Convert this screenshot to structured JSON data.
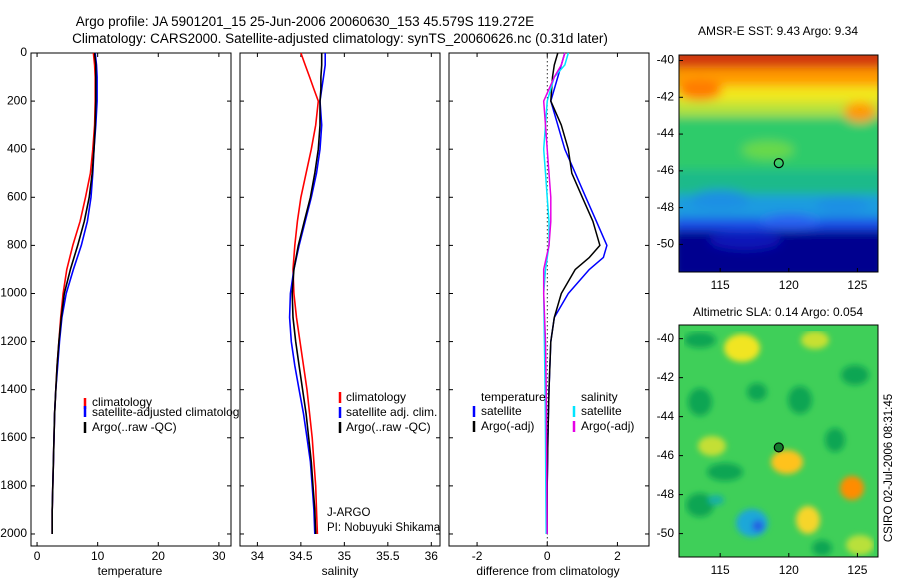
{
  "header": {
    "title_line1": "Argo profile: JA 5901201_15 25-Jun-2006 20060630_153 45.579S 119.272E",
    "title_line2": "Climatology: CARS2000. Satellite-adjusted climatology: synTS_20060626.nc (0.31d later)"
  },
  "colors": {
    "climatology": "#ff0000",
    "satellite": "#0000ff",
    "argo": "#000000",
    "satellite_salinity": "#00e5ff",
    "argo_salinity": "#e600e6"
  },
  "chart_data": [
    {
      "type": "line",
      "id": "temperature",
      "xlabel": "temperature",
      "ylabel": "",
      "xlim": [
        -1,
        32
      ],
      "ylim": [
        0,
        2050
      ],
      "y_reversed": true,
      "xticks": [
        0,
        10,
        20,
        30
      ],
      "xtick_labels": [
        "0",
        "10",
        "20",
        "30"
      ],
      "yticks": [
        0,
        200,
        400,
        600,
        800,
        1000,
        1200,
        1400,
        1600,
        1800,
        2000
      ],
      "ytick_labels": [
        "0",
        "200",
        "400",
        "600",
        "800",
        "1000",
        "1200",
        "1400",
        "1600",
        "1800",
        "2000"
      ],
      "legend": [
        "climatology",
        "satellite-adjusted climatology",
        "Argo(..raw -QC)"
      ],
      "series": [
        {
          "name": "climatology",
          "color_key": "climatology",
          "depth": [
            0,
            50,
            100,
            200,
            300,
            400,
            500,
            600,
            700,
            800,
            900,
            1000,
            1100,
            1200,
            1300,
            1400,
            1500,
            1600,
            1700,
            1800,
            1900,
            2000
          ],
          "values": [
            9.3,
            9.5,
            9.6,
            9.6,
            9.5,
            9.2,
            8.8,
            8.0,
            7.1,
            5.9,
            4.9,
            4.3,
            3.9,
            3.6,
            3.3,
            3.1,
            2.9,
            2.8,
            2.7,
            2.6,
            2.5,
            2.5
          ]
        },
        {
          "name": "satellite-adjusted climatology",
          "color_key": "satellite",
          "depth": [
            0,
            50,
            100,
            200,
            300,
            400,
            500,
            600,
            700,
            800,
            900,
            1000,
            1100,
            1200,
            1300,
            1400,
            1500,
            1600,
            1700,
            1800,
            1900,
            2000
          ],
          "values": [
            9.6,
            9.8,
            9.9,
            9.9,
            9.7,
            9.4,
            9.2,
            8.9,
            8.3,
            7.3,
            6.0,
            4.8,
            4.1,
            3.7,
            3.4,
            3.1,
            2.9,
            2.8,
            2.7,
            2.6,
            2.5,
            2.5
          ]
        },
        {
          "name": "Argo(..raw -QC)",
          "color_key": "argo",
          "depth": [
            0,
            50,
            100,
            200,
            300,
            400,
            500,
            600,
            700,
            800,
            900,
            1000,
            1100,
            1200,
            1300,
            1400,
            1500,
            1600,
            1700,
            1800,
            1900,
            2000
          ],
          "values": [
            9.5,
            9.7,
            9.7,
            9.7,
            9.6,
            9.4,
            9.1,
            8.6,
            7.8,
            6.7,
            5.5,
            4.5,
            4.0,
            3.6,
            3.3,
            3.1,
            2.9,
            2.8,
            2.7,
            2.6,
            2.5,
            2.5
          ]
        }
      ]
    },
    {
      "type": "line",
      "id": "salinity",
      "xlabel": "salinity",
      "ylabel": "",
      "xlim": [
        33.8,
        36.1
      ],
      "ylim": [
        0,
        2050
      ],
      "y_reversed": true,
      "xticks": [
        34,
        34.5,
        35,
        35.5,
        36
      ],
      "xtick_labels": [
        "34",
        "34.5",
        "35",
        "35.5",
        "36"
      ],
      "legend": [
        "climatology",
        "satellite adj. clim.",
        "Argo(..raw -QC)"
      ],
      "annotation_line1": "J-ARGO",
      "annotation_line2": "PI: Nobuyuki Shikama",
      "series": [
        {
          "name": "climatology",
          "color_key": "climatology",
          "depth": [
            0,
            50,
            100,
            150,
            200,
            300,
            400,
            500,
            600,
            700,
            800,
            900,
            1000,
            1100,
            1200,
            1300,
            1400,
            1500,
            1600,
            1700,
            1800,
            1900,
            2000
          ],
          "values": [
            34.5,
            34.55,
            34.6,
            34.65,
            34.7,
            34.67,
            34.62,
            34.56,
            34.5,
            34.46,
            34.43,
            34.41,
            34.42,
            34.45,
            34.49,
            34.53,
            34.57,
            34.6,
            34.63,
            34.65,
            34.67,
            34.68,
            34.69
          ]
        },
        {
          "name": "satellite adj. clim.",
          "color_key": "satellite",
          "depth": [
            0,
            50,
            100,
            150,
            200,
            300,
            400,
            500,
            600,
            700,
            800,
            900,
            1000,
            1100,
            1200,
            1300,
            1400,
            1500,
            1600,
            1700,
            1800,
            1900,
            2000
          ],
          "values": [
            34.78,
            34.78,
            34.76,
            34.74,
            34.72,
            34.74,
            34.72,
            34.68,
            34.62,
            34.55,
            34.48,
            34.42,
            34.38,
            34.37,
            34.39,
            34.43,
            34.48,
            34.53,
            34.57,
            34.61,
            34.63,
            34.65,
            34.66
          ]
        },
        {
          "name": "Argo(..raw -QC)",
          "color_key": "argo",
          "depth": [
            0,
            50,
            100,
            150,
            200,
            300,
            400,
            500,
            600,
            700,
            800,
            900,
            1000,
            1100,
            1200,
            1300,
            1400,
            1500,
            1600,
            1700,
            1800,
            1900,
            2000
          ],
          "values": [
            34.74,
            34.74,
            34.73,
            34.73,
            34.72,
            34.72,
            34.7,
            34.66,
            34.61,
            34.54,
            34.47,
            34.42,
            34.4,
            34.41,
            34.44,
            34.48,
            34.52,
            34.56,
            34.59,
            34.62,
            34.64,
            34.66,
            34.67
          ]
        }
      ]
    },
    {
      "type": "line",
      "id": "difference",
      "xlabel": "difference from climatology",
      "ylabel": "",
      "xlim": [
        -2.8,
        2.9
      ],
      "ylim": [
        0,
        2050
      ],
      "y_reversed": true,
      "xticks": [
        -2,
        0,
        2
      ],
      "xtick_labels": [
        "-2",
        "0",
        "2"
      ],
      "legend_left_title": "temperature",
      "legend_right_title": "salinity",
      "legend_left": [
        "satellite",
        "Argo(-adj)"
      ],
      "legend_right": [
        "satellite",
        "Argo(-adj)"
      ],
      "series": [
        {
          "name": "temperature satellite",
          "color_key": "satellite",
          "depth": [
            0,
            50,
            100,
            200,
            300,
            400,
            500,
            600,
            700,
            800,
            850,
            900,
            1000,
            1100,
            1200,
            1400,
            1600,
            1800,
            2000
          ],
          "values": [
            0.5,
            0.4,
            0.3,
            0.1,
            0.3,
            0.5,
            0.8,
            1.1,
            1.4,
            1.7,
            1.6,
            1.2,
            0.6,
            0.2,
            0.1,
            0.05,
            0.02,
            0.0,
            0.0
          ]
        },
        {
          "name": "temperature Argo(-adj)",
          "color_key": "argo",
          "depth": [
            0,
            50,
            100,
            200,
            300,
            400,
            500,
            600,
            700,
            800,
            850,
            900,
            1000,
            1100,
            1200,
            1400,
            1600,
            1800,
            2000
          ],
          "values": [
            0.3,
            0.2,
            0.15,
            0.1,
            0.4,
            0.6,
            0.7,
            1.0,
            1.3,
            1.5,
            1.2,
            0.8,
            0.4,
            0.2,
            0.1,
            0.05,
            0.02,
            0.0,
            0.0
          ]
        },
        {
          "name": "salinity satellite",
          "color_key": "satellite_salinity",
          "depth": [
            0,
            50,
            100,
            200,
            300,
            400,
            500,
            600,
            700,
            800,
            900,
            1000,
            1200,
            1400,
            1600,
            1800,
            2000
          ],
          "values": [
            0.6,
            0.5,
            0.2,
            0.0,
            -0.05,
            -0.1,
            -0.05,
            0.0,
            0.05,
            0.05,
            -0.05,
            -0.1,
            -0.08,
            -0.06,
            -0.05,
            -0.04,
            -0.03
          ]
        },
        {
          "name": "salinity Argo(-adj)",
          "color_key": "argo_salinity",
          "depth": [
            0,
            50,
            100,
            200,
            300,
            400,
            500,
            600,
            700,
            800,
            900,
            1000,
            1200,
            1400,
            1600,
            1800,
            2000
          ],
          "values": [
            0.5,
            0.4,
            0.2,
            -0.1,
            -0.05,
            0.0,
            0.05,
            0.1,
            0.1,
            0.05,
            -0.1,
            -0.1,
            -0.05,
            -0.03,
            -0.02,
            -0.01,
            0.0
          ]
        }
      ]
    },
    {
      "type": "heatmap",
      "id": "sst-map",
      "title": "AMSR-E SST: 9.43 Argo: 9.34",
      "xlim": [
        112,
        126.5
      ],
      "ylim": [
        -51.5,
        -39.7
      ],
      "xticks": [
        115,
        120,
        125
      ],
      "xtick_labels": [
        "115",
        "120",
        "125"
      ],
      "yticks": [
        -40,
        -42,
        -44,
        -46,
        -48,
        -50
      ],
      "ytick_labels": [
        "-40",
        "-42",
        "-44",
        "-46",
        "-48",
        "-50"
      ],
      "marker": {
        "lon": 119.27,
        "lat": -45.58
      }
    },
    {
      "type": "heatmap",
      "id": "sla-map",
      "title": "Altimetric SLA: 0.14 Argo: 0.054",
      "xlim": [
        112,
        126.5
      ],
      "ylim": [
        -51.2,
        -39.3
      ],
      "xticks": [
        115,
        120,
        125
      ],
      "xtick_labels": [
        "115",
        "120",
        "125"
      ],
      "yticks": [
        -40,
        -42,
        -44,
        -46,
        -48,
        -50
      ],
      "ytick_labels": [
        "-40",
        "-42",
        "-44",
        "-46",
        "-48",
        "-50"
      ],
      "marker": {
        "lon": 119.27,
        "lat": -45.58
      }
    }
  ],
  "footer": {
    "credit": "CSIRO 02-Jul-2006 08:31:45"
  }
}
